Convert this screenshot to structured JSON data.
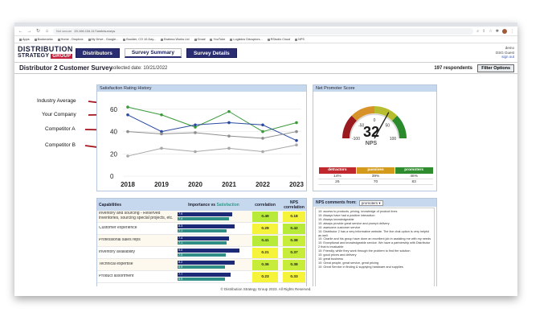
{
  "browser": {
    "url_security": "Not secure",
    "url": "20.106.134.117/web/surveys",
    "bookmarks": [
      "Apps",
      "Bookmarks",
      "Home - Dropbox",
      "My Drive - Google...",
      "Boulder, CO 10-Day...",
      "Brahma Works Ltd",
      "Gmail",
      "YouTube",
      "Logistics Disruptors...",
      "RStudio Cloud",
      "NPS"
    ]
  },
  "app": {
    "logo_line1": "DISTRIBUTION",
    "logo_line2": "STRATEGY",
    "logo_group": "GROUP",
    "nav": [
      "Distributors",
      "Survey Summary",
      "Survey Details"
    ],
    "user": "demo",
    "user_role": "DSG Guest",
    "signout": "sign out"
  },
  "page": {
    "title": "Distributor 2 Customer Survey",
    "collected": "collected date: 10/21/2022",
    "respondents": "197 respondents",
    "filter_button": "Filter Options"
  },
  "annotations": [
    "Industry Average",
    "Your Company",
    "Competitor A",
    "Competitor B"
  ],
  "satisfaction_panel": {
    "title": "Satisfaction Rating History"
  },
  "chart_data": {
    "type": "line",
    "x": [
      "2018",
      "2019",
      "2020",
      "2021",
      "2022",
      "2023"
    ],
    "y_ticks": [
      "0",
      "20",
      "40",
      "60"
    ],
    "ylim": [
      0,
      70
    ],
    "series": [
      {
        "values": [
          62,
          55,
          44,
          58,
          40,
          48
        ],
        "color": "#3a9a3a"
      },
      {
        "values": [
          55,
          40,
          46,
          48,
          46,
          32
        ],
        "color": "#2b4aa0"
      },
      {
        "values": [
          40,
          38,
          39,
          36,
          34,
          40
        ],
        "color": "#8e8e8e"
      },
      {
        "values": [
          18,
          25,
          22,
          25,
          22,
          28
        ],
        "color": "#a8a8a8"
      }
    ]
  },
  "nps_panel": {
    "title": "Net Promoter Score",
    "score": "32",
    "score_label": "NPS",
    "gauge_labels": [
      "-100",
      "-50",
      "0",
      "50",
      "100"
    ],
    "table": {
      "headers": [
        "detractors",
        "passives",
        "promoters"
      ],
      "header_colors": [
        "#c0282d",
        "#d49a1b",
        "#2e8b2e"
      ],
      "percent": [
        "14%",
        "39%",
        "46%"
      ],
      "counts": [
        "26",
        "70",
        "83"
      ]
    }
  },
  "capabilities": {
    "headers": {
      "name": "Capabilities",
      "imp": "Importance",
      "vs": " vs ",
      "sat": "Satisfaction",
      "corr": "correlation",
      "nps": "NPS correlation"
    },
    "rows": [
      {
        "name": "Inventory and sourcing - Reserved inventories, sourcing special projects, etc.",
        "imp": "7.9",
        "sat": "7.4",
        "imp_frac": 0.79,
        "sat_frac": 0.74,
        "corr": "0.49",
        "nps": "0.18",
        "corr_color": "#b8ea3a",
        "nps_color": "#f6f43a"
      },
      {
        "name": "Customer experience",
        "imp": "8.3",
        "sat": "7.1",
        "imp_frac": 0.83,
        "sat_frac": 0.71,
        "corr": "0.29",
        "nps": "0.42",
        "corr_color": "#f6f43a",
        "nps_color": "#b8ea3a"
      },
      {
        "name": "Professional sales reps",
        "imp": "7.4",
        "sat": "7.1",
        "imp_frac": 0.74,
        "sat_frac": 0.71,
        "corr": "0.41",
        "nps": "0.38",
        "corr_color": "#b8ea3a",
        "nps_color": "#c8ec3a"
      },
      {
        "name": "Inventory availability",
        "imp": "9.0",
        "sat": "7.0",
        "imp_frac": 0.9,
        "sat_frac": 0.7,
        "corr": "0.21",
        "nps": "0.37",
        "corr_color": "#f6f43a",
        "nps_color": "#c8ec3a"
      },
      {
        "name": "Technical expertise",
        "imp": "8.2",
        "sat": "6.9",
        "imp_frac": 0.82,
        "sat_frac": 0.69,
        "corr": "0.36",
        "nps": "0.38",
        "corr_color": "#c8ec3a",
        "nps_color": "#c8ec3a"
      },
      {
        "name": "Product assortment",
        "imp": "7.7",
        "sat": "6.9",
        "imp_frac": 0.77,
        "sat_frac": 0.69,
        "corr": "0.23",
        "nps": "0.33",
        "corr_color": "#f6f43a",
        "nps_color": "#f6f43a"
      }
    ]
  },
  "comments": {
    "title": "NPS comments from:",
    "filter": "promoters",
    "items": [
      "10: access to products, pricing, knowledge of product lines",
      "10: Always have had a positive interaction",
      "10: Always knowledgeable",
      "10: always provide great service and prompt delivery",
      "10: awesome customer service",
      "10: Distributor 2 has a very informative website. The live chat option is very helpful as well.",
      "10: Charlie and his group have done an excellent job in assisting me with my needs",
      "10: Exceptional and knowledgeable service. We have a partnership with Distributor 2 that is invaluable",
      "10: Friendly, while they work through the problem to find the solution",
      "10: good prices and delivery",
      "10: great business",
      "10: Great people, great service, great pricing",
      "10: Great Service in finding & supplying hardware and supplies"
    ]
  },
  "footer": "© Distribution Strategy Group 2023. All Rights Reserved."
}
